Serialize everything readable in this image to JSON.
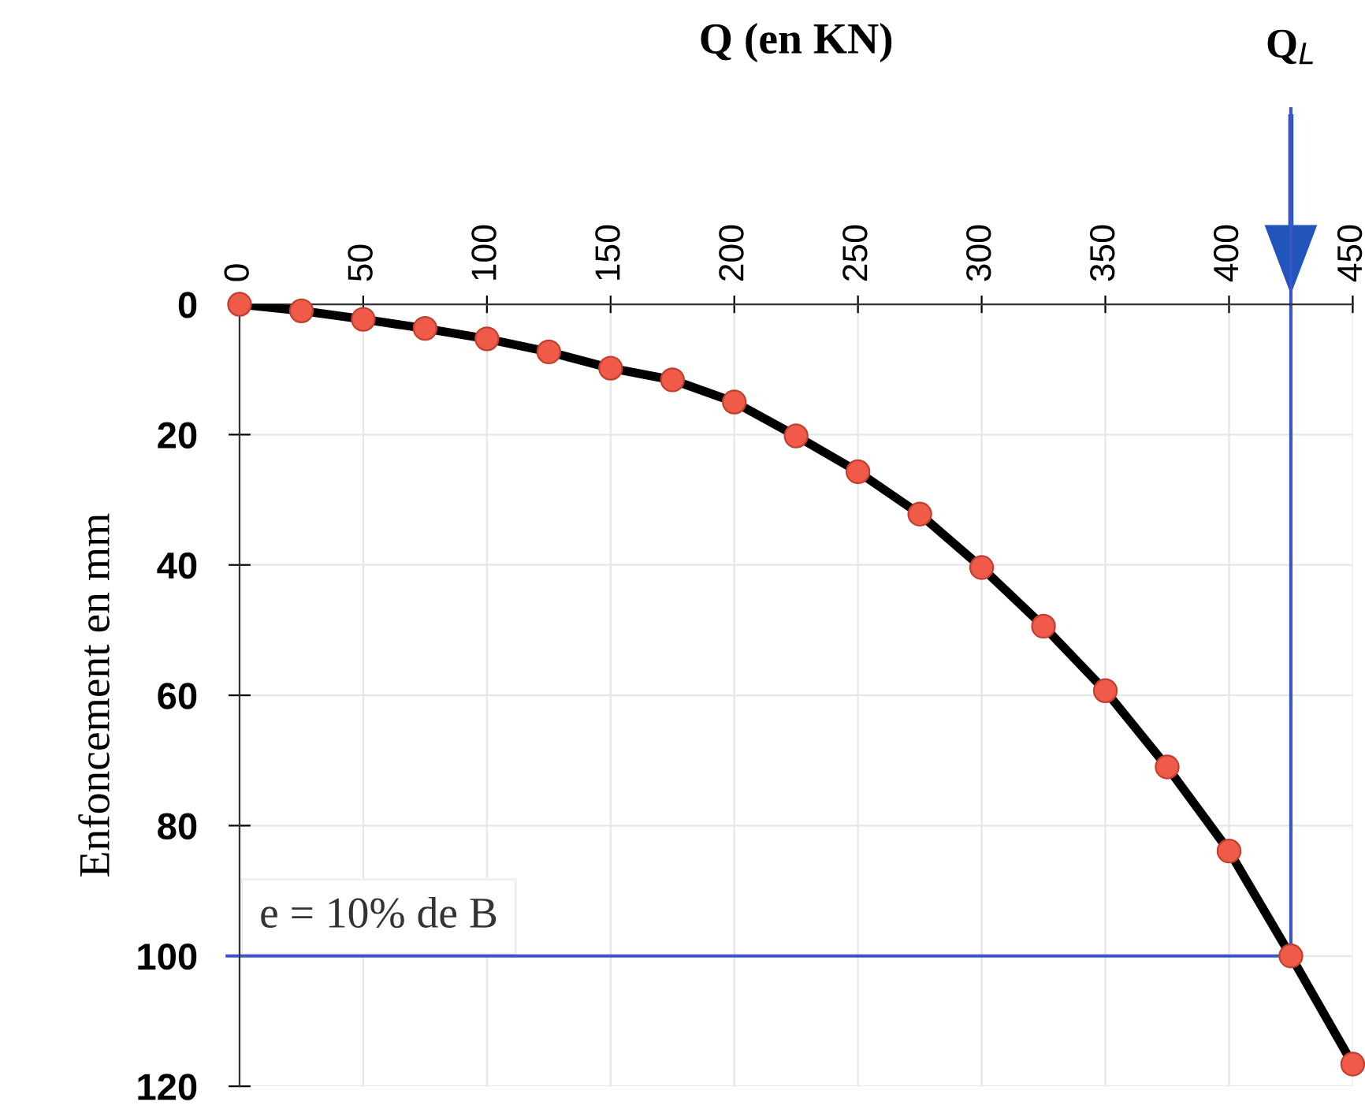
{
  "chart_data": {
    "type": "line",
    "xlabel": "Q (en KN)",
    "ylabel": "Enfoncement en mm",
    "x": [
      0,
      25,
      50,
      75,
      100,
      125,
      150,
      175,
      200,
      225,
      250,
      275,
      300,
      325,
      350,
      375,
      400,
      425,
      450
    ],
    "series": [
      {
        "color": "#000000",
        "colors": [
          "#f05a48",
          "#f05a48",
          "#f05a48",
          "#f05a48",
          "#f05a48",
          "#f05a48",
          "#f05a48",
          "#f05a48",
          "#f05a48",
          "#f05a48",
          "#f05a48",
          "#f05a48",
          "#f05a48",
          "#f05a48",
          "#f05a48",
          "#f05a48",
          "#f05a48",
          "#f05a48",
          "#f05a48"
        ],
        "values": [
          0,
          1.0,
          2.3,
          3.7,
          5.3,
          7.3,
          9.8,
          11.6,
          15.0,
          20.2,
          25.7,
          32.2,
          40.4,
          49.4,
          59.3,
          71.0,
          83.9,
          100,
          116.6
        ]
      }
    ],
    "xlim": [
      0,
      450
    ],
    "xticks": [
      0,
      50,
      100,
      150,
      200,
      250,
      300,
      350,
      400,
      450
    ],
    "ylim": [
      120,
      0
    ],
    "yticks": [
      0,
      20,
      40,
      60,
      80,
      100,
      120
    ],
    "grid": true,
    "marker": "circle",
    "line_style": "solid",
    "ref_lines": [
      {
        "axis": "y",
        "value": 100,
        "color": "#3a55c8"
      },
      {
        "axis": "x",
        "value": 425,
        "label": "Q$_{L}$",
        "color": "#3a55c8"
      }
    ],
    "annotations": [
      "e = 10% de B"
    ]
  }
}
